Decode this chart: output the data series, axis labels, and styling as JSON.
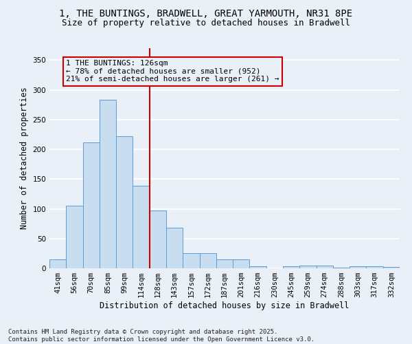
{
  "title": "1, THE BUNTINGS, BRADWELL, GREAT YARMOUTH, NR31 8PE",
  "subtitle": "Size of property relative to detached houses in Bradwell",
  "xlabel": "Distribution of detached houses by size in Bradwell",
  "ylabel": "Number of detached properties",
  "categories": [
    "41sqm",
    "56sqm",
    "70sqm",
    "85sqm",
    "99sqm",
    "114sqm",
    "128sqm",
    "143sqm",
    "157sqm",
    "172sqm",
    "187sqm",
    "201sqm",
    "216sqm",
    "230sqm",
    "245sqm",
    "259sqm",
    "274sqm",
    "288sqm",
    "303sqm",
    "317sqm",
    "332sqm"
  ],
  "values": [
    15,
    105,
    212,
    283,
    222,
    139,
    97,
    68,
    26,
    25,
    15,
    15,
    3,
    0,
    3,
    5,
    5,
    1,
    3,
    4,
    2
  ],
  "bar_color": "#c9ddf0",
  "bar_edge_color": "#5b9bd5",
  "vline_x_index": 6,
  "vline_color": "#cc0000",
  "annotation_text": "1 THE BUNTINGS: 126sqm\n← 78% of detached houses are smaller (952)\n21% of semi-detached houses are larger (261) →",
  "annotation_box_color": "#cc0000",
  "ylim": [
    0,
    370
  ],
  "yticks": [
    0,
    50,
    100,
    150,
    200,
    250,
    300,
    350
  ],
  "footer": "Contains HM Land Registry data © Crown copyright and database right 2025.\nContains public sector information licensed under the Open Government Licence v3.0.",
  "background_color": "#eaf0f8",
  "grid_color": "#ffffff",
  "title_fontsize": 10,
  "subtitle_fontsize": 9,
  "axis_label_fontsize": 8.5,
  "tick_fontsize": 7.5,
  "footer_fontsize": 6.5,
  "annotation_fontsize": 8
}
